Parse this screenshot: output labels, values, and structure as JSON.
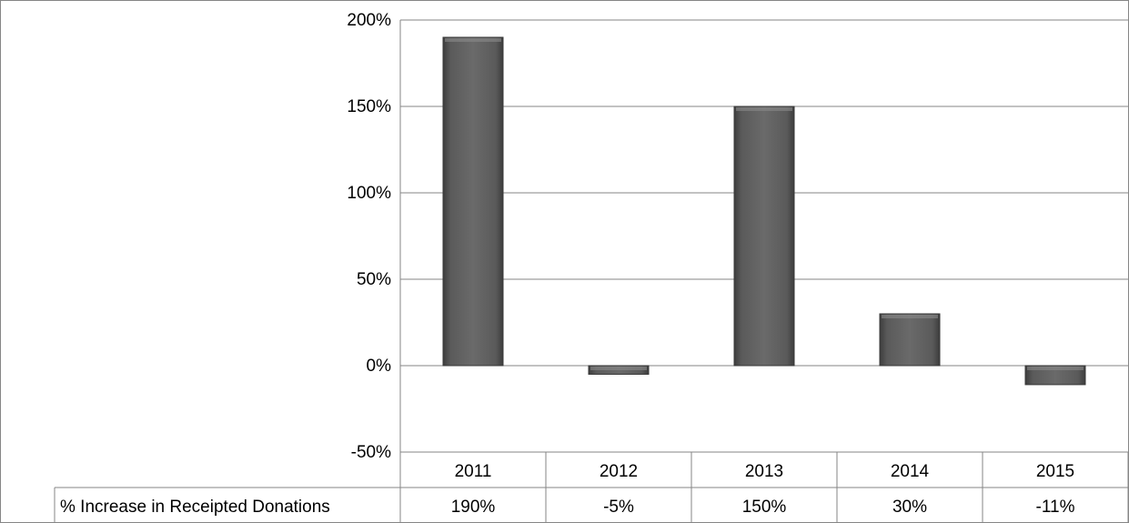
{
  "chart_data": {
    "type": "bar",
    "categories": [
      "2011",
      "2012",
      "2013",
      "2014",
      "2015"
    ],
    "series": [
      {
        "name": "% Increase in Receipted Donations",
        "values": [
          190,
          -5,
          150,
          30,
          -11
        ]
      }
    ],
    "data_labels": [
      "190%",
      "-5%",
      "150%",
      "30%",
      "-11%"
    ],
    "y_ticks": [
      "200%",
      "150%",
      "100%",
      "50%",
      "0%",
      "-50%"
    ],
    "ylim": [
      -50,
      200
    ],
    "grid": true,
    "data_table": true
  },
  "colors": {
    "bar_fill": "#555555",
    "bar_edge": "#3a3a3a",
    "grid": "#868686",
    "border": "#868686"
  }
}
